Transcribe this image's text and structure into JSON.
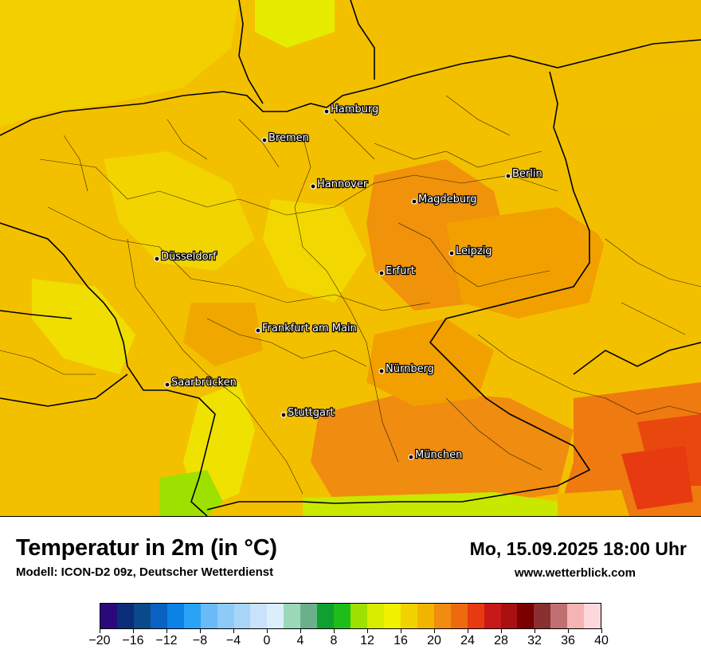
{
  "map": {
    "cities": [
      {
        "name": "Hamburg"
      },
      {
        "name": "Bremen"
      },
      {
        "name": "Berlin"
      },
      {
        "name": "Hannover"
      },
      {
        "name": "Magdeburg"
      },
      {
        "name": "Düsseldorf"
      },
      {
        "name": "Leipzig"
      },
      {
        "name": "Erfurt"
      },
      {
        "name": "Frankfurt am Main"
      },
      {
        "name": "Nürnberg"
      },
      {
        "name": "Saarbrücken"
      },
      {
        "name": "Stuttgart"
      },
      {
        "name": "München"
      }
    ]
  },
  "header": {
    "title": "Temperatur in 2m (in °C)",
    "subtitle": "Modell: ICON-D2 09z, Deutscher Wetterdienst",
    "datetime": "Mo, 15.09.2025 18:00 Uhr",
    "site": "www.wetterblick.com"
  },
  "colorbar": {
    "colors": [
      "#2a0a7a",
      "#0a2e7a",
      "#0a4a8a",
      "#0a62c0",
      "#0a82e6",
      "#2aa2f6",
      "#6abaf8",
      "#8ecaf8",
      "#a8d4fa",
      "#c8e2fc",
      "#daeefc",
      "#9ad8b8",
      "#6ab08a",
      "#10a030",
      "#1ebe1a",
      "#9ee000",
      "#d8ec00",
      "#f0f200",
      "#f2d200",
      "#f2b400",
      "#f08c10",
      "#ee6a10",
      "#e83a10",
      "#c81818",
      "#aa1010",
      "#7a0000",
      "#8a3030",
      "#c07070",
      "#f4b4b4",
      "#fcd8dc"
    ],
    "tick_labels": [
      "−20",
      "−16",
      "−12",
      "−8",
      "−4",
      "0",
      "4",
      "8",
      "12",
      "16",
      "20",
      "24",
      "28",
      "32",
      "36",
      "40"
    ]
  }
}
